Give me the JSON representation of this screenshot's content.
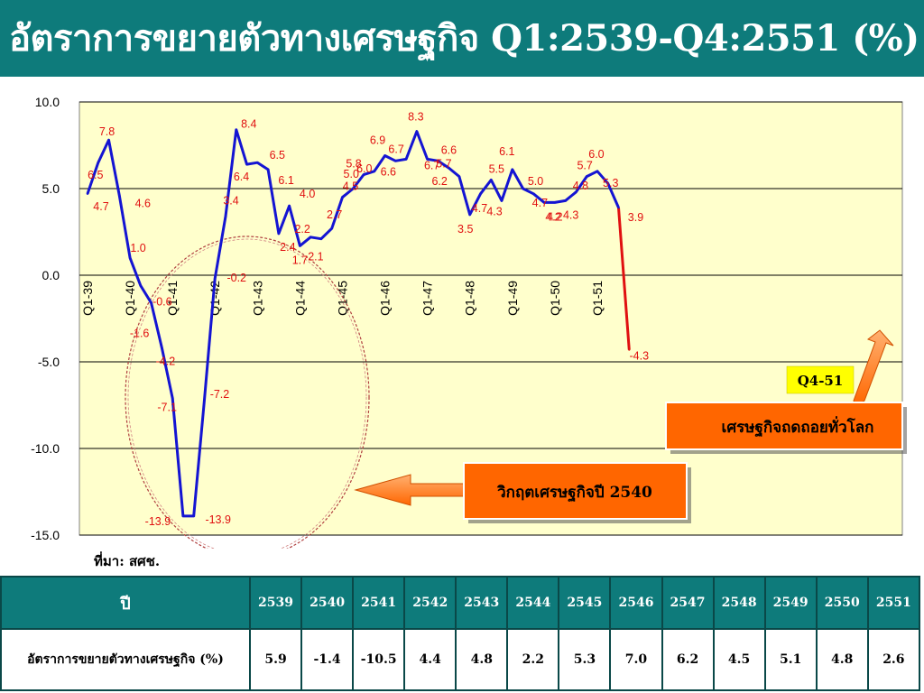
{
  "header": {
    "title": "อัตราการขยายตัวทางเศรษฐกิจ Q1:2539-Q4:2551 (%)"
  },
  "source": "ที่มา: สศช.",
  "annotations": {
    "crisis_label": "วิกฤตเศรษฐกิจปี 2540",
    "recession_label": "เศรษฐกิจถดถอยทั่วโลก",
    "q4_51_label": "Q4-51"
  },
  "colors": {
    "header_bg": "#0e7b7b",
    "plot_bg": "#ffffcc",
    "line": "#1414d2",
    "line_last": "#e01010",
    "point_label": "#e01010",
    "callout_bg": "#ff6600",
    "q4_badge_bg": "#ffff00"
  },
  "chart_data": {
    "type": "line",
    "x": [
      "Q1-39",
      "Q2-39",
      "Q3-39",
      "Q4-39",
      "Q1-40",
      "Q2-40",
      "Q3-40",
      "Q4-40",
      "Q1-41",
      "Q2-41",
      "Q3-41",
      "Q4-41",
      "Q1-42",
      "Q2-42",
      "Q3-42",
      "Q4-42",
      "Q1-43",
      "Q2-43",
      "Q3-43",
      "Q4-43",
      "Q1-44",
      "Q2-44",
      "Q3-44",
      "Q4-44",
      "Q1-45",
      "Q2-45",
      "Q3-45",
      "Q4-45",
      "Q1-46",
      "Q2-46",
      "Q3-46",
      "Q4-46",
      "Q1-47",
      "Q2-47",
      "Q3-47",
      "Q4-47",
      "Q1-48",
      "Q2-48",
      "Q3-48",
      "Q4-48",
      "Q1-49",
      "Q2-49",
      "Q3-49",
      "Q4-49",
      "Q1-50",
      "Q2-50",
      "Q3-50",
      "Q4-50",
      "Q1-51",
      "Q2-51",
      "Q3-51",
      "Q4-51"
    ],
    "values": [
      4.7,
      6.5,
      7.8,
      4.6,
      1.0,
      -0.6,
      -1.6,
      -4.2,
      -7.1,
      -13.9,
      -13.9,
      -7.2,
      -0.2,
      3.4,
      8.4,
      6.4,
      6.5,
      6.1,
      2.4,
      4.0,
      1.7,
      2.2,
      2.1,
      2.7,
      4.5,
      5.0,
      5.8,
      6.0,
      6.9,
      6.6,
      6.7,
      8.3,
      6.7,
      6.6,
      6.2,
      5.7,
      3.5,
      4.7,
      5.5,
      4.3,
      6.1,
      5.0,
      4.7,
      4.2,
      4.2,
      4.3,
      4.8,
      5.7,
      6.0,
      5.3,
      3.9,
      -4.3
    ],
    "point_labels": [
      "4.7",
      "6.5",
      "7.8",
      "4.6",
      "1.0",
      "-0.6",
      "-1.6",
      "-4.2",
      "-7.1",
      "-13.9",
      "-13.9",
      "-7.2",
      "-0.2",
      "3.4",
      "8.4",
      "6.4",
      "6.5",
      "6.1",
      "2.4",
      "4.0",
      "1.7",
      "2.2",
      "2.1",
      "2.7",
      "4.5",
      "5.0",
      "5.8",
      "6.0",
      "6.9",
      "6.6",
      "6.7",
      "8.3",
      "6.7",
      "6.6",
      "6.2",
      "5.7",
      "3.5",
      "4.7",
      "5.5",
      "4.3",
      "6.1",
      "5.0",
      "4.7",
      "4.2",
      "4.2",
      "4.3",
      "4.8",
      "5.7",
      "6.0",
      "5.3",
      "3.9",
      "-4.3"
    ],
    "xtick_labels": [
      "Q1-39",
      "Q1-40",
      "Q1-41",
      "Q1-42",
      "Q1-43",
      "Q1-44",
      "Q1-45",
      "Q1-46",
      "Q1-47",
      "Q1-48",
      "Q1-49",
      "Q1-50",
      "Q1-51"
    ],
    "ytick_labels": [
      "10.0",
      "5.0",
      "0.0",
      "-5.0",
      "-10.0",
      "-15.0"
    ],
    "ylim": [
      -15,
      10
    ],
    "grid": true
  },
  "table": {
    "header_label": "ปี",
    "years": [
      "2539",
      "2540",
      "2541",
      "2542",
      "2543",
      "2544",
      "2545",
      "2546",
      "2547",
      "2548",
      "2549",
      "2550",
      "2551"
    ],
    "row_label": "อัตราการขยายตัวทางเศรษฐกิจ (%)",
    "values": [
      "5.9",
      "-1.4",
      "-10.5",
      "4.4",
      "4.8",
      "2.2",
      "5.3",
      "7.0",
      "6.2",
      "4.5",
      "5.1",
      "4.8",
      "2.6"
    ]
  }
}
